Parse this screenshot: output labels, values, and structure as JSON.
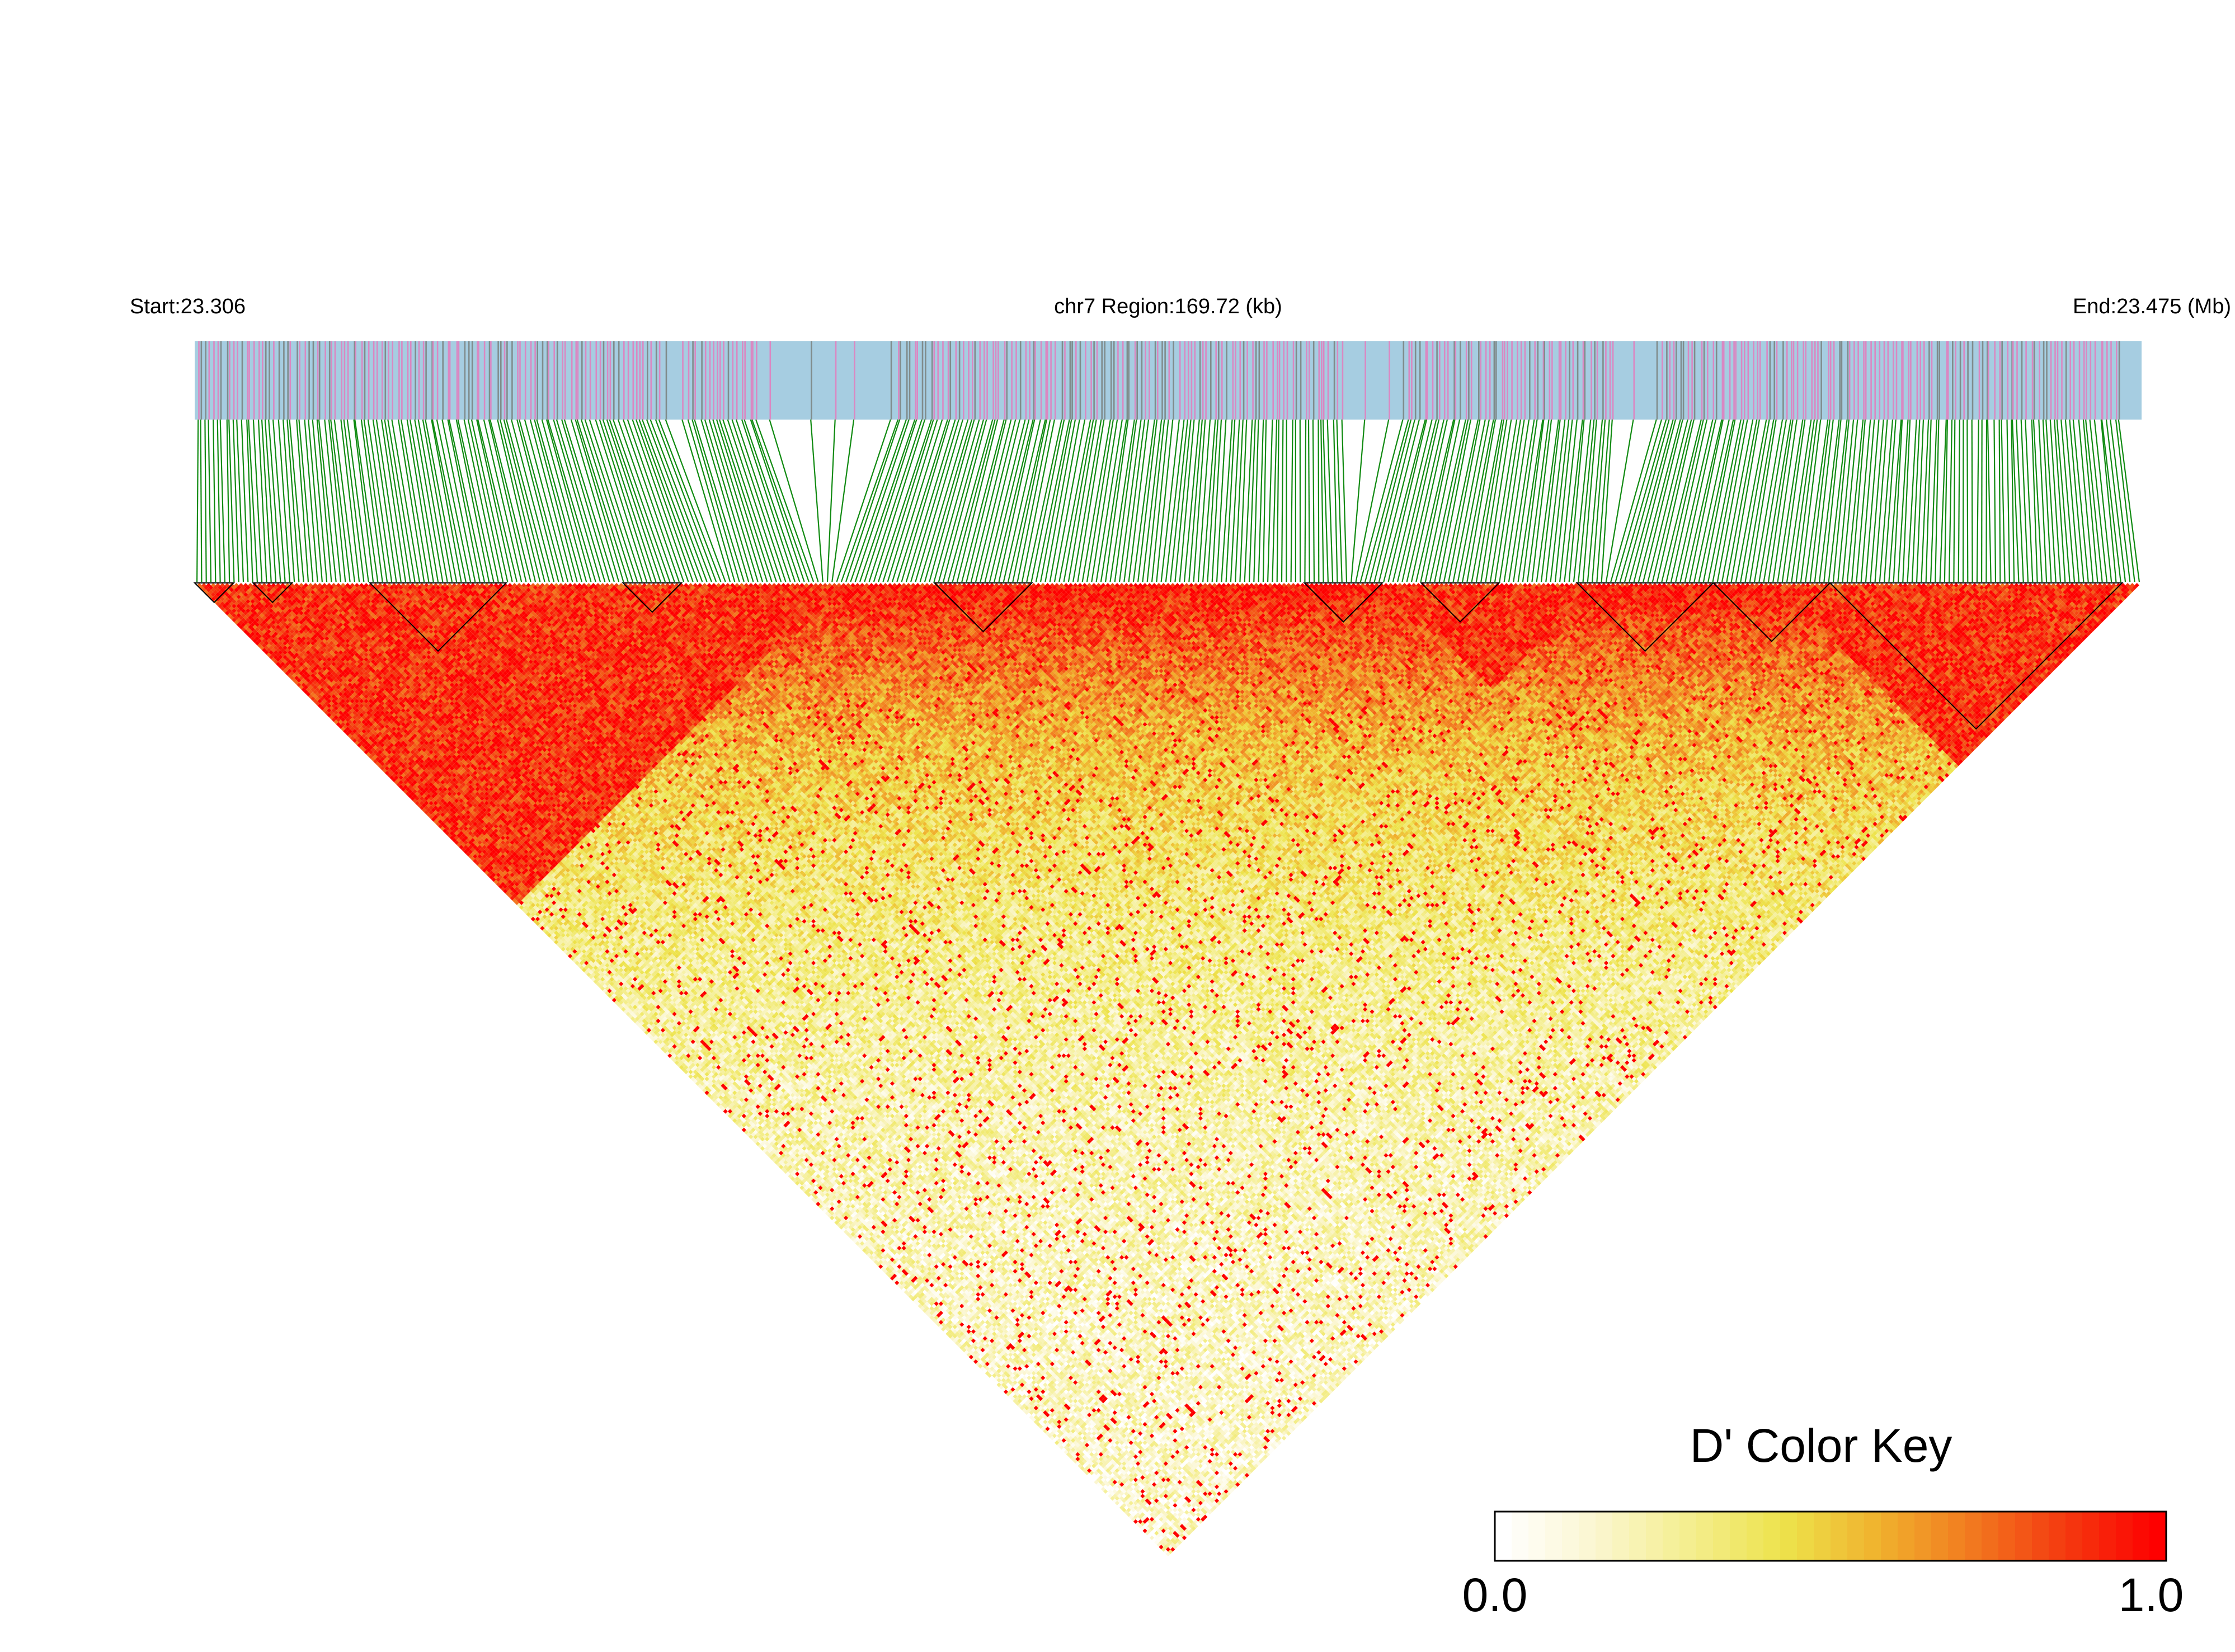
{
  "chart_data": {
    "type": "heatmap",
    "region": {
      "start_label": "Start:23.306",
      "center_label": "chr7 Region:169.72 (kb)",
      "end_label": "End:23.475 (Mb)",
      "start_mb": 23.306,
      "end_mb": 23.475,
      "span_kb": 169.72
    },
    "matrix_statistic": "D'",
    "value_range": [
      0.0,
      1.0
    ],
    "n_markers": 420,
    "snp_density": {
      "comment": "marker position along region (fraction 0-1), read from the annotation strip",
      "dense_segments": [
        [
          0.0,
          0.08
        ],
        [
          0.08,
          0.24
        ],
        [
          0.25,
          0.29
        ],
        [
          0.36,
          0.59
        ],
        [
          0.62,
          0.73
        ],
        [
          0.75,
          0.77
        ],
        [
          0.77,
          0.99
        ]
      ],
      "sparse_segments": [
        [
          0.24,
          0.25
        ],
        [
          0.29,
          0.36
        ],
        [
          0.59,
          0.62
        ],
        [
          0.73,
          0.75
        ]
      ]
    },
    "ld_blocks": {
      "comment": "high-LD blocks on the diagonal, as [start, end] marker-fraction intervals",
      "intervals": [
        [
          0.0,
          0.02
        ],
        [
          0.03,
          0.05
        ],
        [
          0.09,
          0.16
        ],
        [
          0.22,
          0.25
        ],
        [
          0.38,
          0.43
        ],
        [
          0.57,
          0.61
        ],
        [
          0.63,
          0.67
        ],
        [
          0.71,
          0.78
        ],
        [
          0.78,
          0.84
        ],
        [
          0.84,
          0.99
        ]
      ],
      "strong_region": [
        [
          0.0,
          0.33
        ],
        [
          0.61,
          0.72
        ],
        [
          0.81,
          1.0
        ]
      ]
    },
    "legend": {
      "title": "D' Color Key",
      "min_label": "0.0",
      "max_label": "1.0",
      "colors": [
        "#ffffff",
        "#fbf6cf",
        "#f4ee8e",
        "#ede34b",
        "#f0b22e",
        "#f27a1f",
        "#f43a10",
        "#fe0000"
      ]
    },
    "colors": {
      "strip_background": "#a6cde1",
      "snp_mark_a": "#da88c2",
      "snp_mark_b": "#808c8c",
      "connector_lines": "#0f8a10",
      "block_outline": "#000000"
    }
  }
}
